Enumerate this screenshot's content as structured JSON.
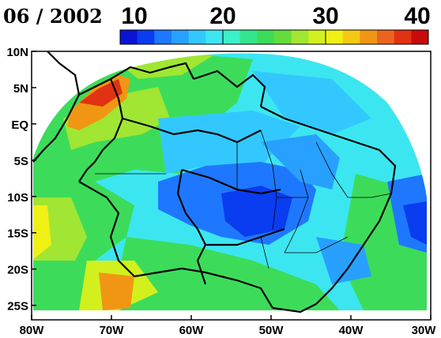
{
  "map": {
    "date_label": "06 / 2002",
    "colorbar": {
      "ticks": [
        10,
        20,
        30,
        40
      ],
      "min": 10,
      "max": 40,
      "colors": [
        "#0a14d2",
        "#0a3cf0",
        "#1e78ff",
        "#28a0ff",
        "#32c8ff",
        "#3ce6f0",
        "#3cf0c8",
        "#32e68c",
        "#3cdc5a",
        "#64dc3c",
        "#a0e632",
        "#d2f01e",
        "#f0f014",
        "#f5c814",
        "#f09614",
        "#eb641e",
        "#e13214",
        "#c80a0a"
      ]
    },
    "lat_labels": [
      "10N",
      "5N",
      "EQ",
      "5S",
      "10S",
      "15S",
      "20S",
      "25S"
    ],
    "lon_labels": [
      "80W",
      "70W",
      "60W",
      "50W",
      "40W",
      "30W"
    ],
    "extent": {
      "lon": [
        -80,
        -30
      ],
      "lat": [
        -27,
        10
      ]
    }
  }
}
